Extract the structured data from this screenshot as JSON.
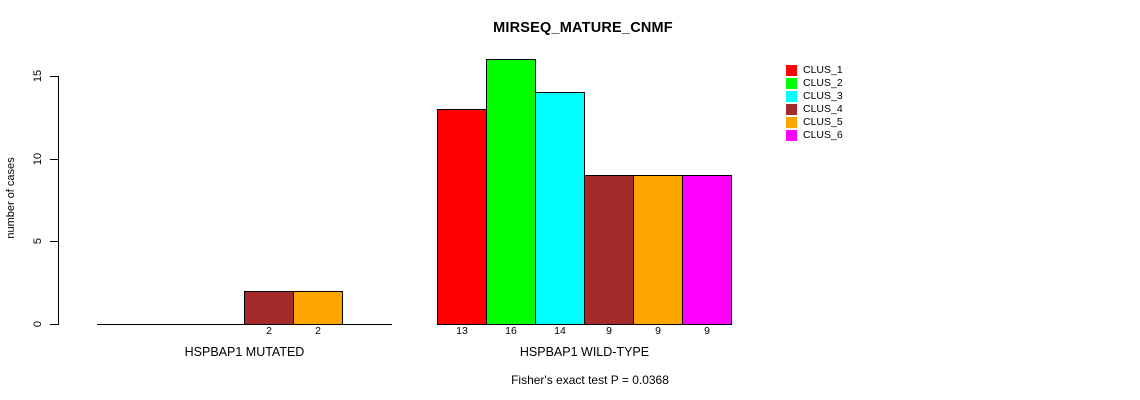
{
  "chart_data": {
    "type": "bar",
    "title": "MIRSEQ_MATURE_CNMF",
    "ylabel": "number of cases",
    "xlabel": "",
    "yticks": [
      0,
      5,
      10,
      15
    ],
    "ylim": [
      0,
      16.5
    ],
    "grid": false,
    "legend_position": "top-right",
    "series": [
      "CLUS_1",
      "CLUS_2",
      "CLUS_3",
      "CLUS_4",
      "CLUS_5",
      "CLUS_6"
    ],
    "colors": [
      "#FF0000",
      "#00FF00",
      "#00FFFF",
      "#A52A2A",
      "#FFA500",
      "#FF00FF"
    ],
    "groups": [
      {
        "label": "HSPBAP1 MUTATED",
        "values": [
          0,
          0,
          0,
          2,
          2,
          0
        ]
      },
      {
        "label": "HSPBAP1 WILD-TYPE",
        "values": [
          13,
          16,
          14,
          9,
          9,
          9
        ]
      }
    ],
    "caption": "Fisher's exact test P = 0.0368",
    "background_color": "#FFFFFF",
    "axis_color": "#000000"
  }
}
